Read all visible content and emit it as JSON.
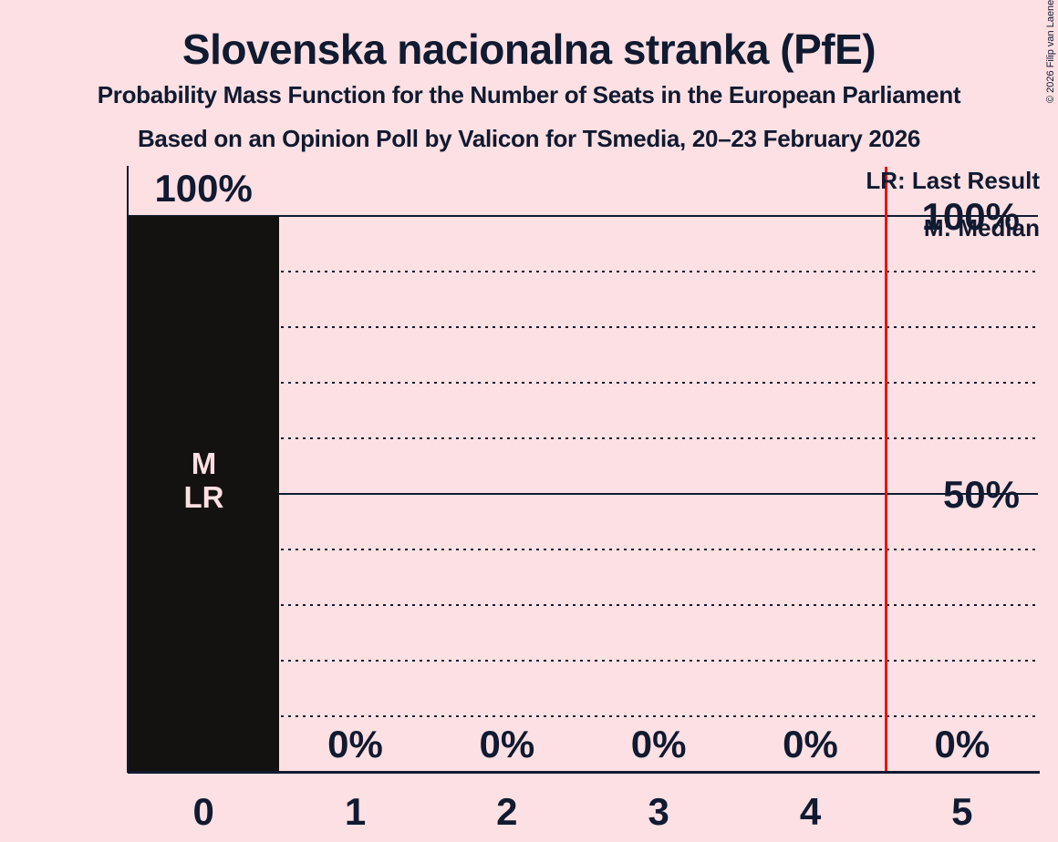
{
  "title": "Slovenska nacionalna stranka (PfE)",
  "subtitle": "Probability Mass Function for the Number of Seats in the European Parliament",
  "poll_line": "Based on an Opinion Poll by Valicon for TSmedia, 20–23 February 2026",
  "copyright": "© 2026 Filip van Laenen",
  "legend": {
    "last_result": "LR: Last Result",
    "median": "M: Median"
  },
  "y_axis": {
    "labels": [
      {
        "value": 100,
        "text": "100%"
      },
      {
        "value": 50,
        "text": "50%"
      }
    ]
  },
  "chart_data": {
    "type": "bar",
    "title": "Slovenska nacionalna stranka (PfE)",
    "categories": [
      "0",
      "1",
      "2",
      "3",
      "4",
      "5"
    ],
    "values": [
      100,
      0,
      0,
      0,
      0,
      0
    ],
    "value_labels": [
      "100%",
      "0%",
      "0%",
      "0%",
      "0%",
      "0%"
    ],
    "ylim": [
      0,
      100
    ],
    "grid": {
      "solid_percent": [
        100,
        50
      ],
      "dotted_percent": [
        90,
        80,
        70,
        60,
        40,
        30,
        20,
        10
      ]
    },
    "bar_annotations": [
      {
        "category": "0",
        "lines": [
          "M",
          "LR"
        ]
      }
    ],
    "vline_x": 4.5,
    "legend_position": "top-right"
  },
  "colors": {
    "background": "#fde0e3",
    "ink": "#101a30",
    "bar": "#141111",
    "bar_label": "#fde0e3",
    "reference_line": "#ee1111"
  }
}
